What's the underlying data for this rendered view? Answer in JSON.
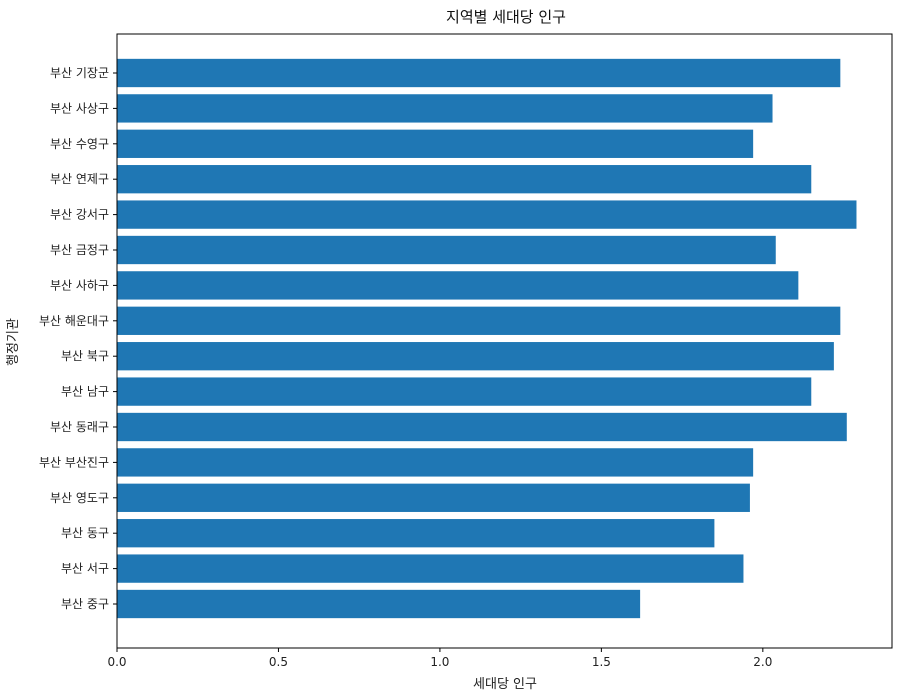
{
  "chart_data": {
    "type": "bar",
    "orientation": "horizontal",
    "title": "지역별 세대당 인구",
    "xlabel": "세대당 인구",
    "ylabel": "행정기관",
    "categories": [
      "부산 중구",
      "부산 서구",
      "부산 동구",
      "부산 영도구",
      "부산 부산진구",
      "부산 동래구",
      "부산 남구",
      "부산 북구",
      "부산 해운대구",
      "부산 사하구",
      "부산 금정구",
      "부산 강서구",
      "부산 연제구",
      "부산 수영구",
      "부산 사상구",
      "부산 기장군"
    ],
    "values": [
      1.62,
      1.94,
      1.85,
      1.96,
      1.97,
      2.26,
      2.15,
      2.22,
      2.24,
      2.11,
      2.04,
      2.29,
      2.15,
      1.97,
      2.03,
      2.24
    ],
    "xlim": [
      0,
      2.4
    ],
    "xticks": [
      "0.0",
      "0.5",
      "1.0",
      "1.5",
      "2.0"
    ],
    "grid": false,
    "bar_color": "#1f77b4"
  }
}
